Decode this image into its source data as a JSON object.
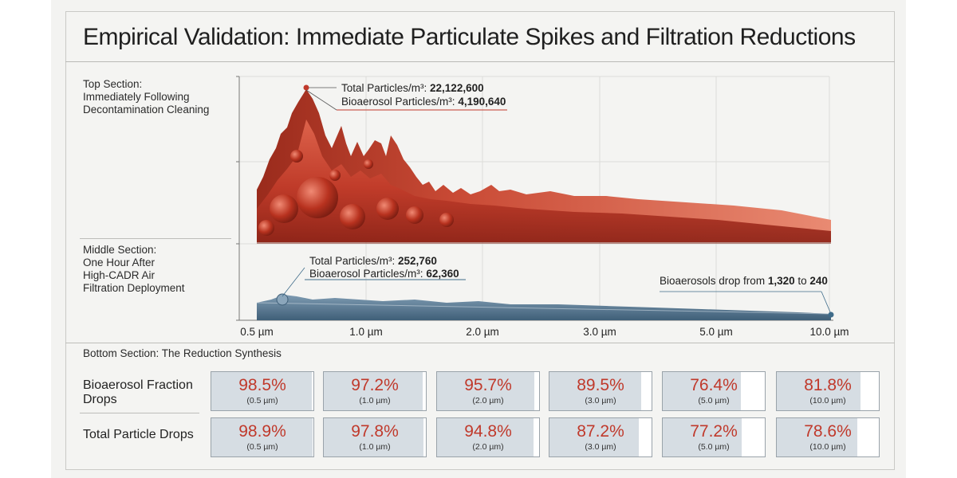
{
  "title": "Empirical Validation: Immediate Particulate Spikes and Filtration Reductions",
  "top_section": {
    "label_lines": [
      "Top Section:",
      "Immediately Following",
      "Decontamination Cleaning"
    ],
    "annotation": {
      "total_label": "Total Particles/m³: ",
      "total_value": "22,122,600",
      "bio_label": "Bioaerosol Particles/m³: ",
      "bio_value": "4,190,640"
    }
  },
  "middle_section": {
    "label_lines": [
      "Middle Section:",
      "One Hour After",
      "High-CADR Air",
      "Filtration Deployment"
    ],
    "annotation": {
      "total_label": "Total Particles/m³: ",
      "total_value": "252,760",
      "bio_label": "Bioaerosol Particles/m³: ",
      "bio_value": "62,360"
    },
    "note": {
      "prefix": "Bioaerosols drop from ",
      "from": "1,320",
      "mid": " to ",
      "to": "240"
    }
  },
  "x_ticks": [
    "0.5 µm",
    "1.0 µm",
    "2.0 µm",
    "3.0 µm",
    "5.0 µm",
    "10.0 µm"
  ],
  "colors": {
    "red": "#c0392b",
    "red_dark": "#8e2418",
    "red_light": "#e26a52",
    "blue": "#5f7f98",
    "blue_light": "#a9bccb",
    "cell_fill": "#d6dde3"
  },
  "bottom_section": {
    "title": "Bottom Section: The Reduction Synthesis",
    "rows": [
      {
        "label": "Bioaerosol Fraction Drops",
        "cells": [
          {
            "pct": "98.5%",
            "size": "(0.5 µm)"
          },
          {
            "pct": "97.2%",
            "size": "(1.0 µm)"
          },
          {
            "pct": "95.7%",
            "size": "(2.0 µm)"
          },
          {
            "pct": "89.5%",
            "size": "(3.0 µm)"
          },
          {
            "pct": "76.4%",
            "size": "(5.0 µm)"
          },
          {
            "pct": "81.8%",
            "size": "(10.0 µm)"
          }
        ]
      },
      {
        "label": "Total Particle Drops",
        "cells": [
          {
            "pct": "98.9%",
            "size": "(0.5 µm)"
          },
          {
            "pct": "97.8%",
            "size": "(1.0 µm)"
          },
          {
            "pct": "94.8%",
            "size": "(2.0 µm)"
          },
          {
            "pct": "87.2%",
            "size": "(3.0 µm)"
          },
          {
            "pct": "77.2%",
            "size": "(5.0 µm)"
          },
          {
            "pct": "78.6%",
            "size": "(10.0 µm)"
          }
        ]
      }
    ]
  },
  "chart_data": {
    "type": "area",
    "x": [
      "0.5 µm",
      "1.0 µm",
      "2.0 µm",
      "3.0 µm",
      "5.0 µm",
      "10.0 µm"
    ],
    "series": [],
    "annotations": [
      {
        "x": "0.5 µm",
        "text": "Total Particles/m³: 22,122,600; Bioaerosol Particles/m³: 4,190,640"
      },
      {
        "x": "0.5 µm",
        "text": "Total Particles/m³: 252,760; Bioaerosol Particles/m³: 62,360"
      },
      {
        "x": "10.0 µm",
        "text": "Bioaerosols drop from 1,320 to 240"
      }
    ],
    "reduction_table": {
      "categories": [
        "0.5 µm",
        "1.0 µm",
        "2.0 µm",
        "3.0 µm",
        "5.0 µm",
        "10.0 µm"
      ],
      "bioaerosol_fraction_drop_pct": [
        98.5,
        97.2,
        95.7,
        89.5,
        76.4,
        81.8
      ],
      "total_particle_drop_pct": [
        98.9,
        97.8,
        94.8,
        87.2,
        77.2,
        78.6
      ]
    },
    "grid": true
  }
}
